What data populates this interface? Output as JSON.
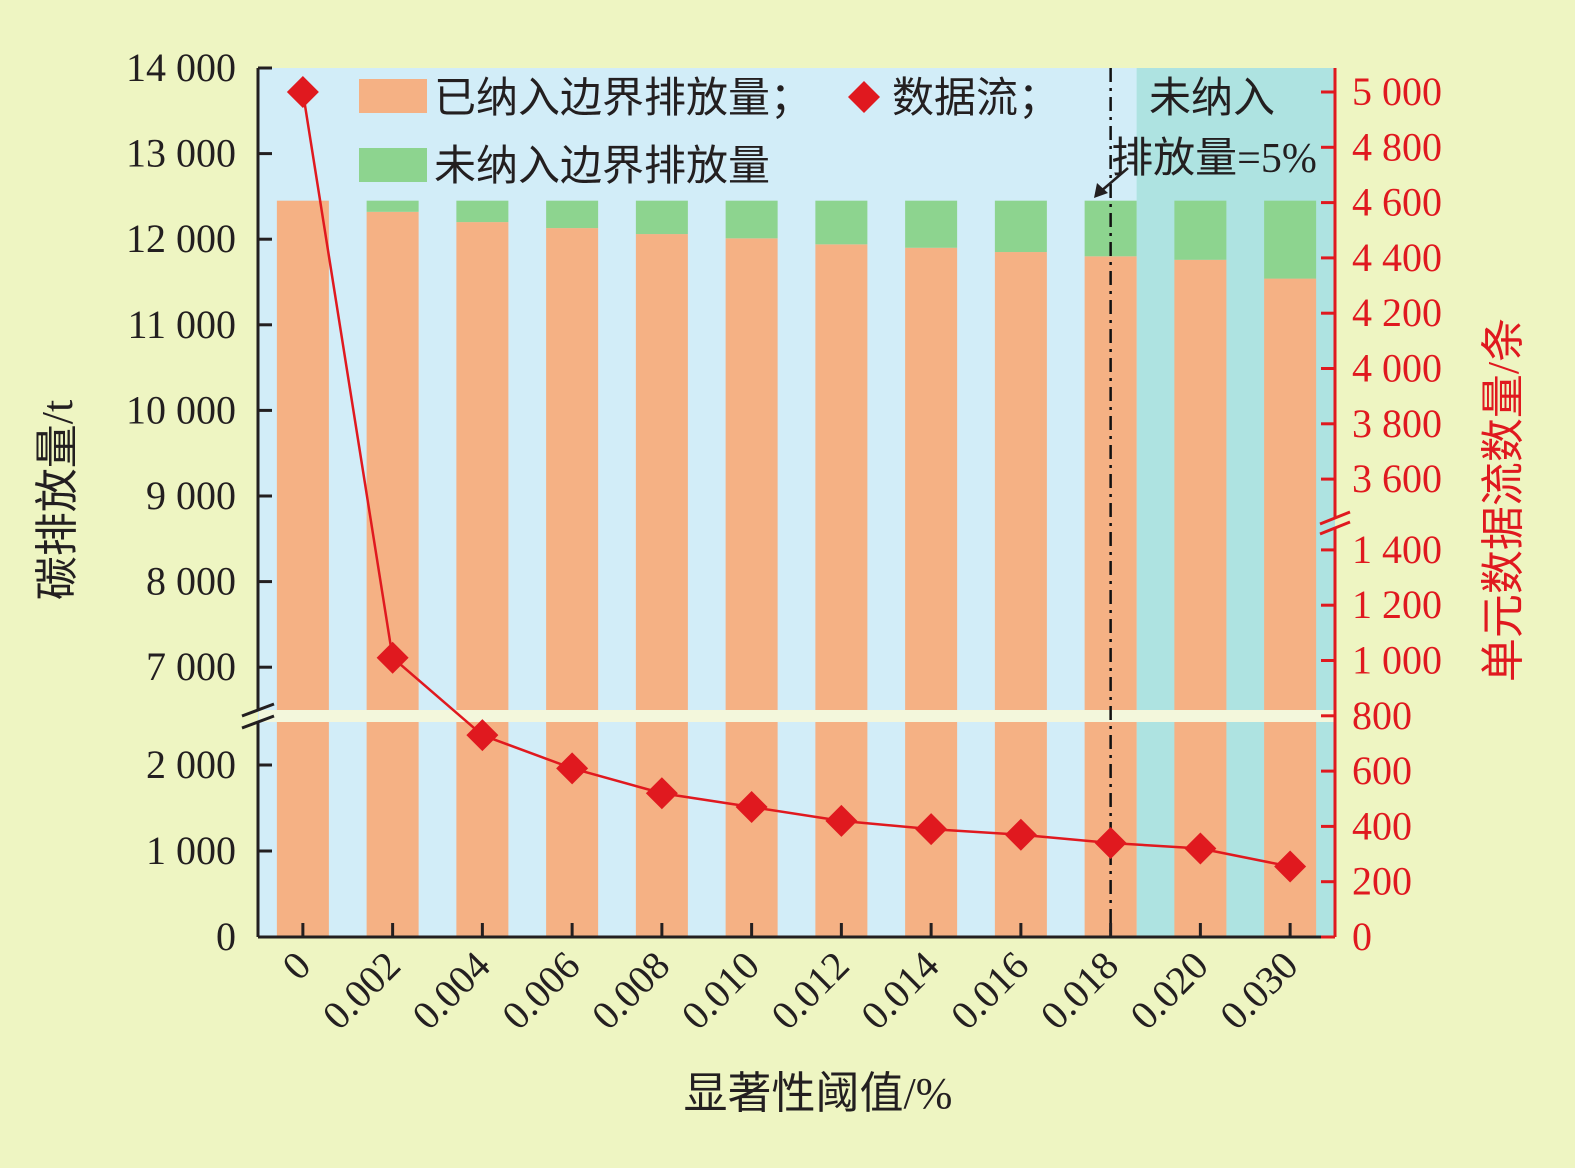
{
  "chart_data": {
    "type": "bar",
    "xlabel": "显著性阈值/%",
    "ylabel_left": "碳排放量/t",
    "ylabel_right": "单元数据流数量/条",
    "categories": [
      "0",
      "0.002",
      "0.004",
      "0.006",
      "0.008",
      "0.010",
      "0.012",
      "0.014",
      "0.016",
      "0.018",
      "0.020",
      "0.030"
    ],
    "y_left_ticks": [
      "0",
      "1 000",
      "2 000",
      "7 000",
      "8 000",
      "9 000",
      "10 000",
      "11 000",
      "12 000",
      "13 000",
      "14 000"
    ],
    "y_right_ticks": [
      "0",
      "200",
      "400",
      "600",
      "800",
      "1 000",
      "1 200",
      "1 400",
      "3 600",
      "3 800",
      "4 000",
      "4 200",
      "4 400",
      "4 600",
      "4 800",
      "5 000"
    ],
    "ylim_left": [
      0,
      14000
    ],
    "ylim_right": [
      0,
      5000
    ],
    "left_axis_break": [
      2500,
      6500
    ],
    "right_axis_break": [
      1500,
      3500
    ],
    "stacked": true,
    "series": [
      {
        "name": "已纳入边界排放量",
        "type": "bar",
        "axis": "left",
        "color": "#f5b184",
        "values": [
          12450,
          12320,
          12200,
          12130,
          12060,
          12010,
          11940,
          11900,
          11850,
          11800,
          11760,
          11540
        ]
      },
      {
        "name": "未纳入边界排放量",
        "type": "bar",
        "axis": "left",
        "color": "#8dd48f",
        "values": [
          0,
          130,
          250,
          320,
          390,
          440,
          510,
          550,
          600,
          650,
          690,
          910
        ]
      },
      {
        "name": "数据流",
        "type": "line",
        "axis": "right",
        "color": "#e0191f",
        "marker": "diamond",
        "values": [
          5000,
          1010,
          730,
          610,
          520,
          470,
          420,
          390,
          370,
          340,
          320,
          255
        ]
      }
    ],
    "legend": {
      "entries": [
        "已纳入边界排放量",
        "数据流",
        "未纳入边界排放量"
      ],
      "separator": "；",
      "placement": "top-left"
    },
    "annotation": {
      "line1": "未纳入",
      "line2": "排放量=5%",
      "at_category": "0.018"
    },
    "colors": {
      "outer_bg": "#eef5c2",
      "plot_bg": "#d2edf8",
      "shaded_bg": "#aee3e1",
      "break_band": "#f3f7dc",
      "right_axis": "#e0191f",
      "left_axis": "#231f20"
    }
  }
}
